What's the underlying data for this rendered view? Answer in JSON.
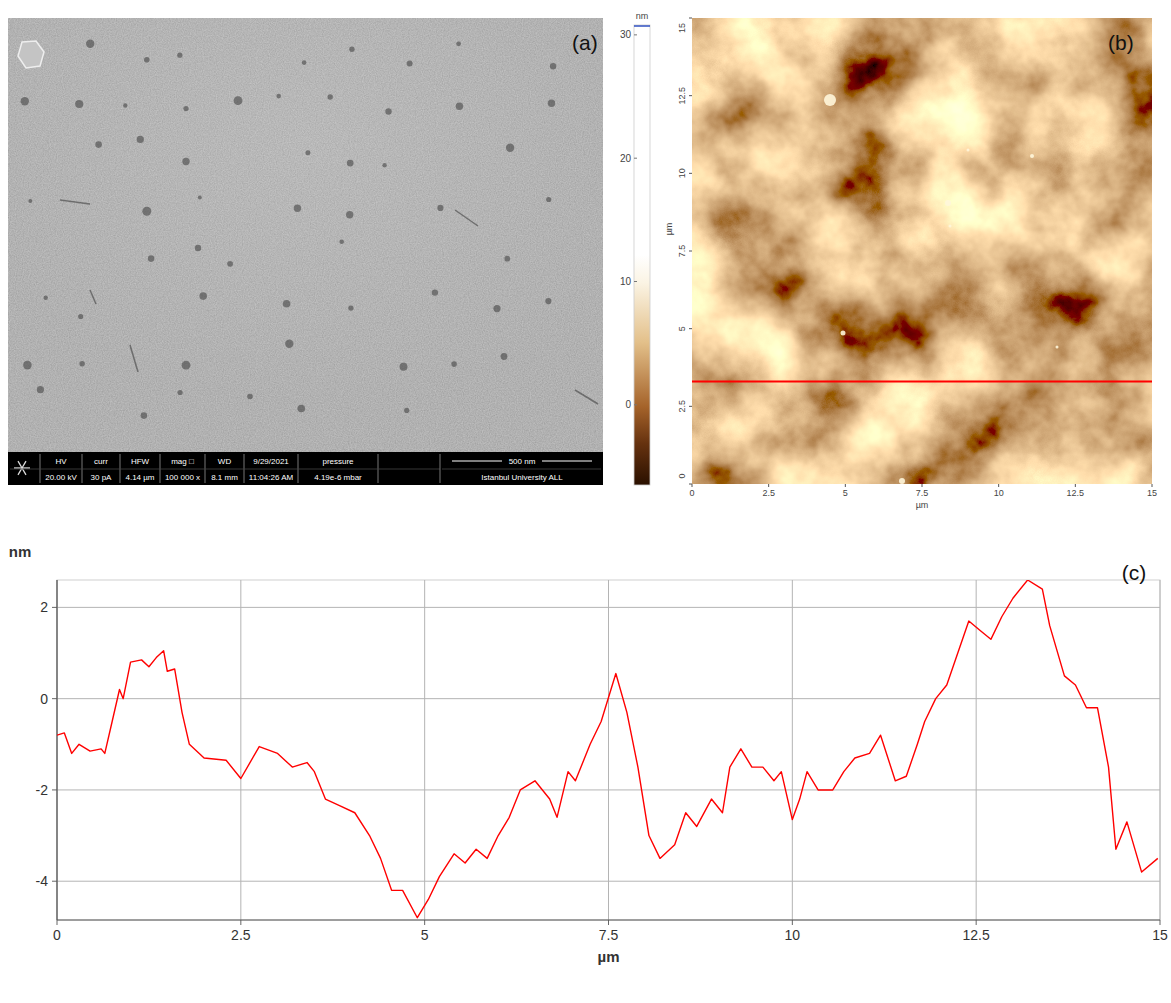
{
  "chart_data": [
    {
      "type": "sem",
      "panel": "(a)",
      "info_bar": {
        "headers": [
          "HV",
          "curr",
          "HFW",
          "mag □",
          "WD",
          "9/29/2021",
          "pressure"
        ],
        "values": [
          "20.00 kV",
          "30 pA",
          "4.14 µm",
          "100 000 x",
          "8.1 mm",
          "11:04:26 AM",
          "4.19e-6 mbar"
        ],
        "scale_bar": "500 nm",
        "institution": "Istanbul University ALL"
      }
    },
    {
      "type": "afm",
      "panel": "(b)",
      "x_label": "µm",
      "y_label": "µm",
      "xlim": [
        0,
        15
      ],
      "ylim": [
        0,
        15
      ],
      "xticks": [
        0,
        2.5,
        5,
        7.5,
        10,
        12.5,
        15
      ],
      "yticks": [
        0,
        2.5,
        5,
        7.5,
        10,
        12.5,
        15
      ],
      "colorbar": {
        "label": "nm",
        "range": [
          -6.5,
          30.8
        ],
        "ticks": [
          0,
          10,
          20,
          30
        ]
      },
      "profile_y": 3.3,
      "color": "#ff0000"
    },
    {
      "type": "line",
      "panel": "(c)",
      "x_label": "µm",
      "y_label": "nm",
      "xlim": [
        0,
        15
      ],
      "ylim": [
        -4.85,
        2.6
      ],
      "xticks": [
        0,
        2.5,
        5,
        7.5,
        10,
        12.5,
        15
      ],
      "yticks": [
        -4,
        -2,
        0,
        2
      ],
      "grid": true,
      "color": "#ff0000",
      "x": [
        0,
        0.1,
        0.2,
        0.3,
        0.45,
        0.6,
        0.65,
        0.75,
        0.85,
        0.9,
        1.0,
        1.15,
        1.25,
        1.35,
        1.45,
        1.5,
        1.6,
        1.7,
        1.8,
        2.0,
        2.3,
        2.5,
        2.75,
        3.0,
        3.2,
        3.4,
        3.5,
        3.65,
        3.85,
        4.05,
        4.25,
        4.4,
        4.55,
        4.7,
        4.9,
        5.05,
        5.2,
        5.4,
        5.55,
        5.7,
        5.85,
        6.0,
        6.15,
        6.3,
        6.5,
        6.7,
        6.8,
        6.95,
        7.05,
        7.25,
        7.4,
        7.6,
        7.75,
        7.9,
        8.05,
        8.2,
        8.4,
        8.55,
        8.7,
        8.9,
        9.05,
        9.15,
        9.3,
        9.45,
        9.6,
        9.75,
        9.85,
        10.0,
        10.1,
        10.2,
        10.35,
        10.55,
        10.7,
        10.85,
        11.05,
        11.2,
        11.4,
        11.55,
        11.7,
        11.8,
        11.95,
        12.1,
        12.25,
        12.4,
        12.55,
        12.7,
        12.85,
        13.0,
        13.2,
        13.4,
        13.5,
        13.7,
        13.85,
        14.0,
        14.15,
        14.3,
        14.4,
        14.55,
        14.75,
        14.97
      ],
      "values": [
        -0.8,
        -0.75,
        -1.2,
        -1.0,
        -1.15,
        -1.1,
        -1.2,
        -0.5,
        0.2,
        0.0,
        0.8,
        0.85,
        0.7,
        0.9,
        1.05,
        0.6,
        0.65,
        -0.3,
        -1.0,
        -1.3,
        -1.35,
        -1.75,
        -1.05,
        -1.2,
        -1.5,
        -1.4,
        -1.6,
        -2.2,
        -2.35,
        -2.5,
        -3.0,
        -3.5,
        -4.2,
        -4.2,
        -4.8,
        -4.4,
        -3.9,
        -3.4,
        -3.6,
        -3.3,
        -3.5,
        -3.0,
        -2.6,
        -2.0,
        -1.8,
        -2.2,
        -2.6,
        -1.6,
        -1.8,
        -1.0,
        -0.5,
        0.55,
        -0.3,
        -1.5,
        -3.0,
        -3.5,
        -3.2,
        -2.5,
        -2.8,
        -2.2,
        -2.5,
        -1.5,
        -1.1,
        -1.5,
        -1.5,
        -1.8,
        -1.6,
        -2.65,
        -2.2,
        -1.6,
        -2.0,
        -2.0,
        -1.6,
        -1.3,
        -1.2,
        -0.8,
        -1.8,
        -1.7,
        -1.0,
        -0.5,
        0.0,
        0.3,
        1.0,
        1.7,
        1.5,
        1.3,
        1.8,
        2.2,
        2.6,
        2.4,
        1.6,
        0.5,
        0.3,
        -0.2,
        -0.2,
        -1.5,
        -3.3,
        -2.7,
        -3.8,
        -3.5
      ]
    }
  ]
}
